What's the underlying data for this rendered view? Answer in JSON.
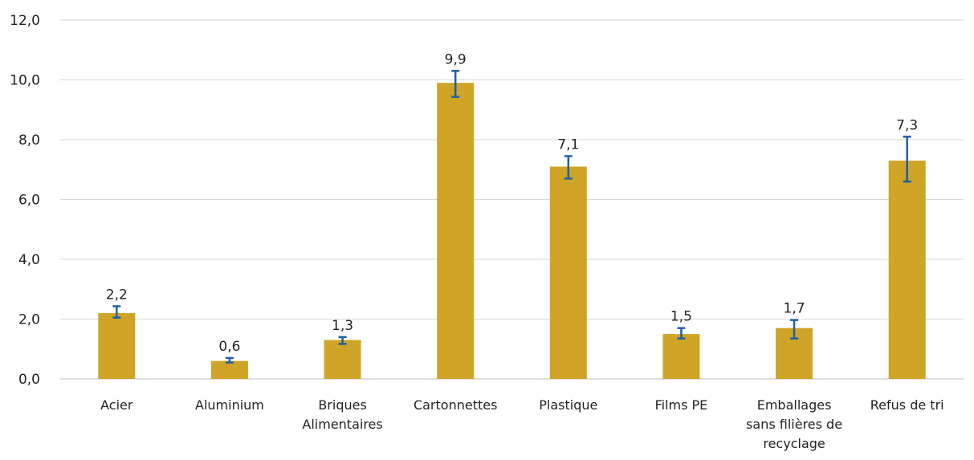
{
  "chart_data": {
    "type": "bar",
    "categories": [
      [
        "Acier"
      ],
      [
        "Aluminium"
      ],
      [
        "Briques",
        "Alimentaires"
      ],
      [
        "Cartonnettes"
      ],
      [
        "Plastique"
      ],
      [
        "Films PE"
      ],
      [
        "Emballages",
        "sans filières de",
        "recyclage"
      ],
      [
        "Refus de tri"
      ]
    ],
    "values": [
      2.2,
      0.6,
      1.3,
      9.9,
      7.1,
      1.5,
      1.7,
      7.3
    ],
    "data_labels": [
      "2,2",
      "0,6",
      "1,3",
      "9,9",
      "7,1",
      "1,5",
      "1,7",
      "7,3"
    ],
    "error_low": [
      2.05,
      0.55,
      1.17,
      9.43,
      6.7,
      1.35,
      1.35,
      6.6
    ],
    "error_high": [
      2.43,
      0.7,
      1.4,
      10.3,
      7.45,
      1.7,
      1.97,
      8.1
    ],
    "ylim": [
      0,
      12
    ],
    "yticks": [
      0,
      2,
      4,
      6,
      8,
      10,
      12
    ],
    "ytick_labels": [
      "0,0",
      "2,0",
      "4,0",
      "6,0",
      "8,0",
      "10,0",
      "12,0"
    ],
    "grid": true,
    "title": "",
    "xlabel": "",
    "ylabel": "",
    "colors": {
      "bar": "#cfa427",
      "error_bar": "#1f5fa8",
      "grid": "#d9d9d9",
      "text": "#222222"
    }
  }
}
